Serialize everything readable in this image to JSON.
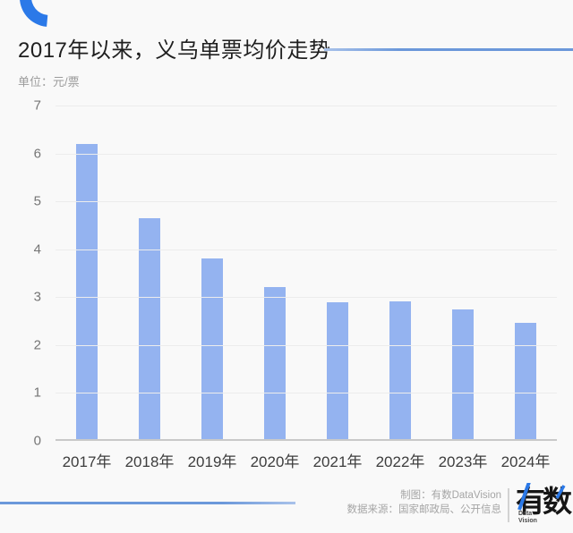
{
  "header": {
    "title": "2017年以来，义乌单票均价走势"
  },
  "chart": {
    "unit_label": "单位：元/票"
  },
  "chart_data": {
    "type": "bar",
    "title": "2017年以来，义乌单票均价走势",
    "unit": "元/票",
    "categories": [
      "2017年",
      "2018年",
      "2019年",
      "2020年",
      "2021年",
      "2022年",
      "2023年",
      "2024年"
    ],
    "values": [
      6.17,
      4.63,
      3.79,
      3.2,
      2.87,
      2.9,
      2.72,
      2.45
    ],
    "xlabel": "",
    "ylabel": "元/票",
    "ylim": [
      0,
      7
    ],
    "yticks": [
      0,
      1,
      2,
      3,
      4,
      5,
      6,
      7
    ],
    "grid": true,
    "legend": "none",
    "bar_color": "#94b3f0",
    "grid_color": "#ececec",
    "axis_color": "#c9c9c9"
  },
  "footer": {
    "credit_line": "制图：有数DataVision",
    "source_line": "数据来源：国家邮政局、公开信息",
    "logo_text": "有数",
    "logo_sub1": "Data",
    "logo_sub2": "Vision"
  },
  "colors": {
    "background": "#f9f9f9",
    "accent_blue": "#2b79e8",
    "rule_blue": "#6b98da",
    "bar_blue": "#94b3f0"
  }
}
